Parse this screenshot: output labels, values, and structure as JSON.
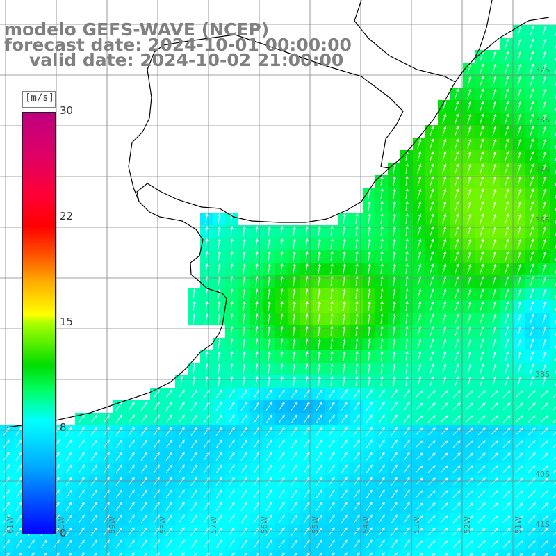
{
  "title": {
    "model": "modelo GEFS-WAVE (NCEP)",
    "forecast": "forecast date: 2024-10-01 00:00:00",
    "valid": "valid date: 2024-10-02 21:00:00"
  },
  "colorbar": {
    "unit": "[m/s]",
    "ticks": [
      "30",
      "22",
      "15",
      "8",
      "0"
    ],
    "min": 0,
    "max": 30,
    "colors": [
      "#0000ff",
      "#00aaff",
      "#00ffff",
      "#00ff66",
      "#00dd00",
      "#aaff00",
      "#ffff00",
      "#ffaa00",
      "#ff5500",
      "#ff0000",
      "#ff0033",
      "#dd0066",
      "#c00080"
    ]
  },
  "map": {
    "variable": "wind speed and direction",
    "land_color": "#ffffff",
    "coastline_color": "#000000",
    "grid_color": "#808080",
    "vector_color": "#ffffff",
    "lat_labels": [
      "32S",
      "33S",
      "34S",
      "35S",
      "38S",
      "40S",
      "41S"
    ],
    "lon_labels": [
      "61W",
      "60W",
      "59W",
      "58W",
      "57W",
      "56W",
      "55W",
      "54W",
      "53W",
      "52W",
      "51W"
    ]
  }
}
